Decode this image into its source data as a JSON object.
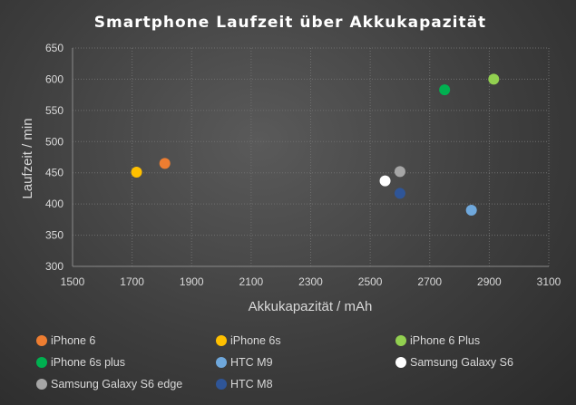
{
  "chart_data": {
    "type": "scatter",
    "title": "Smartphone Laufzeit über Akkukapazität",
    "xlabel": "Akkukapazität / mAh",
    "ylabel": "Laufzeit / min",
    "xlim": [
      1500,
      3100
    ],
    "ylim": [
      300,
      650
    ],
    "xticks": [
      "1500",
      "1700",
      "1900",
      "2100",
      "2300",
      "2500",
      "2700",
      "2900",
      "3100"
    ],
    "yticks": [
      "300",
      "350",
      "400",
      "450",
      "500",
      "550",
      "600",
      "650"
    ],
    "grid": "vertical and horizontal dotted",
    "legend_position": "bottom",
    "series": [
      {
        "name": "iPhone 6",
        "color": "#ed7d31",
        "x": 1810,
        "y": 465
      },
      {
        "name": "iPhone 6s",
        "color": "#ffc000",
        "x": 1715,
        "y": 451
      },
      {
        "name": "iPhone 6 Plus",
        "color": "#92d050",
        "x": 2915,
        "y": 600
      },
      {
        "name": "iPhone 6s plus",
        "color": "#00b050",
        "x": 2750,
        "y": 583
      },
      {
        "name": "HTC M9",
        "color": "#6fa8dc",
        "x": 2840,
        "y": 390
      },
      {
        "name": "Samsung Galaxy S6",
        "color": "#ffffff",
        "x": 2550,
        "y": 437
      },
      {
        "name": "Samsung Galaxy S6 edge",
        "color": "#a6a6a6",
        "x": 2600,
        "y": 452
      },
      {
        "name": "HTC M8",
        "color": "#2f5597",
        "x": 2600,
        "y": 417
      }
    ]
  }
}
